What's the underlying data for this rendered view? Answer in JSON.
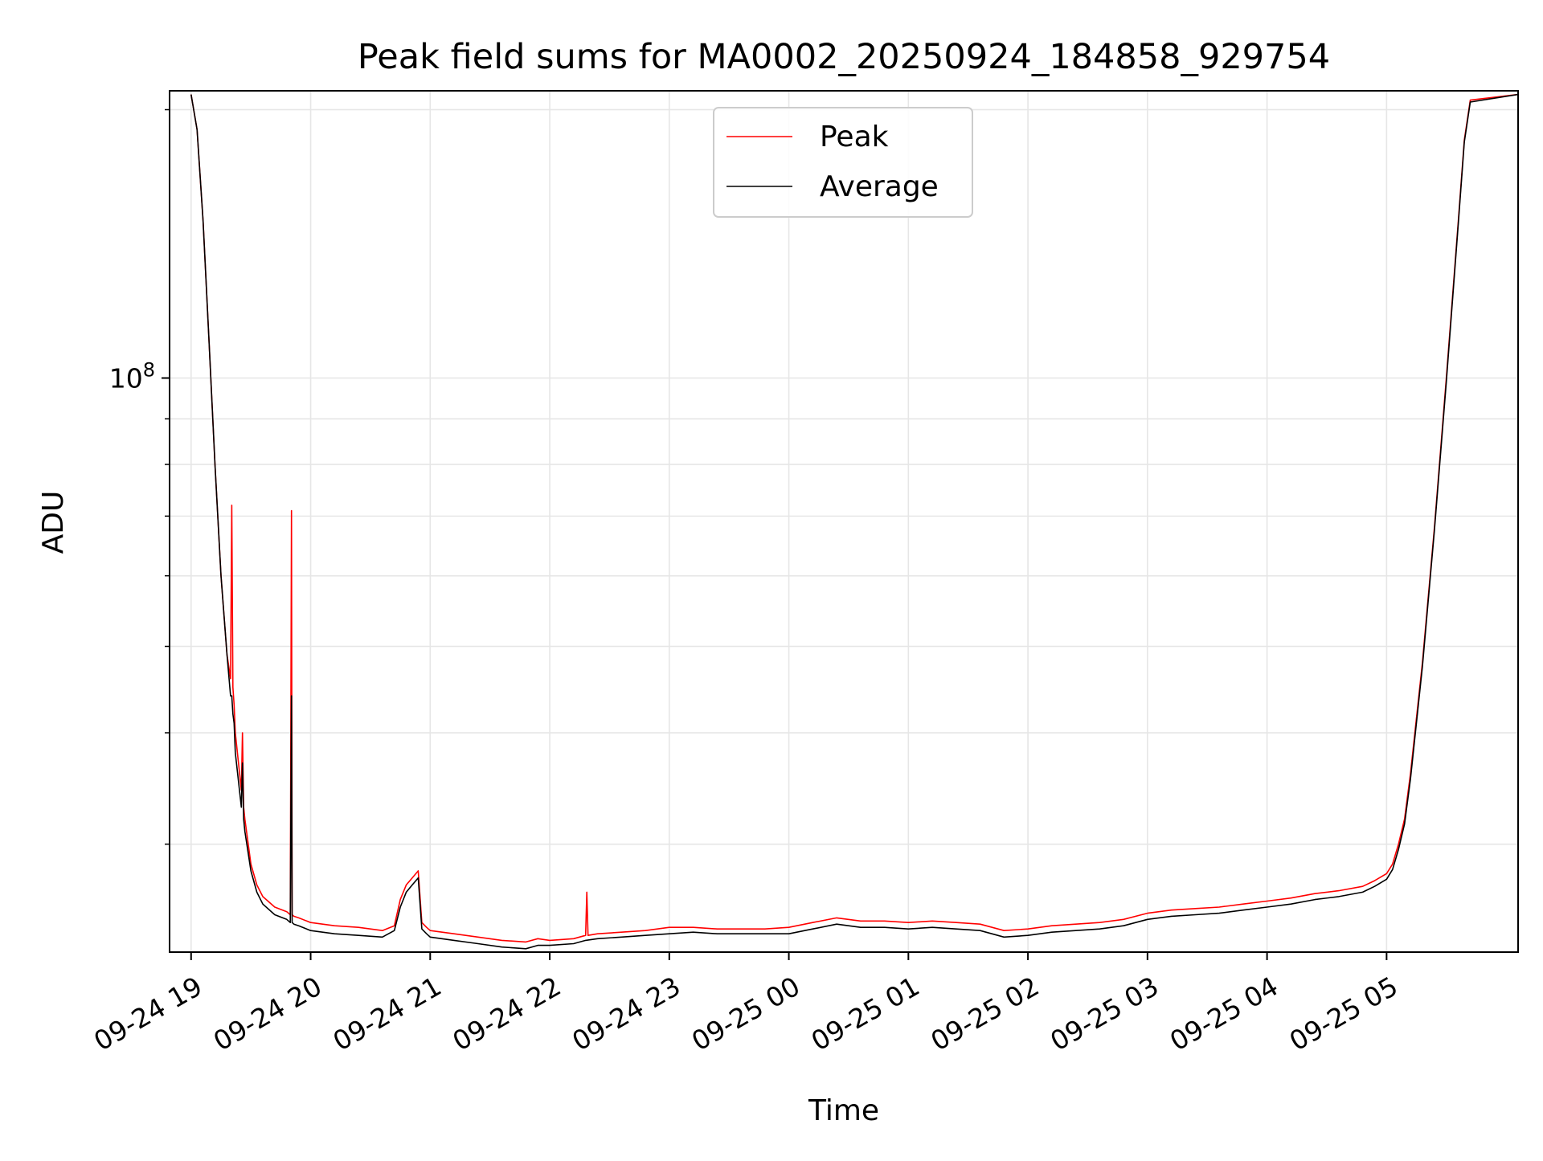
{
  "chart_data": {
    "type": "line",
    "title": "Peak field sums for MA0002_20250924_184858_929754",
    "xlabel": "Time",
    "ylabel": "ADU",
    "yscale": "log",
    "ylim": [
      22700000,
      210000000
    ],
    "xlim": [
      -0.18,
      11.1
    ],
    "x_ticks": [
      {
        "value": 0,
        "label": "09-24 19"
      },
      {
        "value": 1,
        "label": "09-24 20"
      },
      {
        "value": 2,
        "label": "09-24 21"
      },
      {
        "value": 3,
        "label": "09-24 22"
      },
      {
        "value": 4,
        "label": "09-24 23"
      },
      {
        "value": 5,
        "label": "09-25 00"
      },
      {
        "value": 6,
        "label": "09-25 01"
      },
      {
        "value": 7,
        "label": "09-25 02"
      },
      {
        "value": 8,
        "label": "09-25 03"
      },
      {
        "value": 9,
        "label": "09-25 04"
      },
      {
        "value": 10,
        "label": "09-25 05"
      }
    ],
    "y_major_ticks": [
      {
        "value": 100000000,
        "base": "10",
        "exp": "8"
      }
    ],
    "y_minor_ticks": [
      30000000,
      40000000,
      50000000,
      60000000,
      70000000,
      80000000,
      90000000,
      200000000
    ],
    "grid": true,
    "legend_position": "top-center",
    "series": [
      {
        "name": "Peak",
        "color": "#ff0000",
        "x": [
          0.0,
          0.05,
          0.1,
          0.15,
          0.2,
          0.25,
          0.3,
          0.33,
          0.34,
          0.35,
          0.36,
          0.37,
          0.42,
          0.43,
          0.44,
          0.45,
          0.5,
          0.55,
          0.6,
          0.7,
          0.8,
          0.83,
          0.84,
          0.845,
          0.86,
          0.9,
          1.0,
          1.2,
          1.4,
          1.6,
          1.7,
          1.75,
          1.8,
          1.85,
          1.9,
          1.93,
          1.97,
          2.0,
          2.2,
          2.4,
          2.6,
          2.8,
          2.9,
          3.0,
          3.2,
          3.3,
          3.31,
          3.32,
          3.4,
          3.6,
          3.8,
          4.0,
          4.2,
          4.4,
          4.6,
          4.8,
          5.0,
          5.2,
          5.4,
          5.6,
          5.8,
          6.0,
          6.2,
          6.4,
          6.6,
          6.8,
          7.0,
          7.2,
          7.4,
          7.6,
          7.8,
          8.0,
          8.2,
          8.4,
          8.6,
          8.8,
          9.0,
          9.2,
          9.4,
          9.6,
          9.8,
          9.9,
          10.0,
          10.05,
          10.1,
          10.15,
          10.2,
          10.3,
          10.4,
          10.5,
          10.6,
          10.65,
          10.7,
          11.1
        ],
        "y": [
          208000000,
          190000000,
          150000000,
          110000000,
          80000000,
          60000000,
          49000000,
          46000000,
          72000000,
          45000000,
          43000000,
          40000000,
          34500000,
          40000000,
          33000000,
          32000000,
          28500000,
          27000000,
          26200000,
          25500000,
          25200000,
          25000000,
          71000000,
          25000000,
          24900000,
          24800000,
          24500000,
          24300000,
          24200000,
          24000000,
          24300000,
          26000000,
          27000000,
          27500000,
          28000000,
          24500000,
          24200000,
          24000000,
          23800000,
          23600000,
          23400000,
          23300000,
          23500000,
          23400000,
          23500000,
          23700000,
          26500000,
          23700000,
          23800000,
          23900000,
          24000000,
          24200000,
          24200000,
          24100000,
          24100000,
          24100000,
          24200000,
          24500000,
          24800000,
          24600000,
          24600000,
          24500000,
          24600000,
          24500000,
          24400000,
          24000000,
          24100000,
          24300000,
          24400000,
          24500000,
          24700000,
          25100000,
          25300000,
          25400000,
          25500000,
          25700000,
          25900000,
          26100000,
          26400000,
          26600000,
          26900000,
          27300000,
          27800000,
          28500000,
          30000000,
          32000000,
          36000000,
          48000000,
          68000000,
          100000000,
          150000000,
          185000000,
          205000000,
          208000000
        ]
      },
      {
        "name": "Average",
        "color": "#000000",
        "x": [
          0.0,
          0.05,
          0.1,
          0.15,
          0.2,
          0.25,
          0.3,
          0.33,
          0.34,
          0.35,
          0.36,
          0.37,
          0.42,
          0.43,
          0.44,
          0.45,
          0.5,
          0.55,
          0.6,
          0.7,
          0.8,
          0.83,
          0.84,
          0.845,
          0.86,
          0.9,
          1.0,
          1.2,
          1.4,
          1.6,
          1.7,
          1.75,
          1.8,
          1.85,
          1.9,
          1.93,
          1.97,
          2.0,
          2.2,
          2.4,
          2.6,
          2.8,
          2.9,
          3.0,
          3.2,
          3.3,
          3.4,
          3.6,
          3.8,
          4.0,
          4.2,
          4.4,
          4.6,
          4.8,
          5.0,
          5.2,
          5.4,
          5.6,
          5.8,
          6.0,
          6.2,
          6.4,
          6.6,
          6.8,
          7.0,
          7.2,
          7.4,
          7.6,
          7.8,
          8.0,
          8.2,
          8.4,
          8.6,
          8.8,
          9.0,
          9.2,
          9.4,
          9.6,
          9.8,
          9.9,
          10.0,
          10.05,
          10.1,
          10.15,
          10.2,
          10.3,
          10.4,
          10.5,
          10.6,
          10.65,
          10.7,
          11.1
        ],
        "y": [
          208000000,
          190000000,
          150000000,
          110000000,
          80000000,
          60000000,
          49000000,
          44000000,
          44000000,
          42000000,
          41000000,
          38000000,
          33000000,
          37000000,
          32000000,
          31000000,
          28000000,
          26500000,
          25700000,
          25000000,
          24700000,
          24500000,
          44000000,
          24500000,
          24400000,
          24300000,
          24000000,
          23800000,
          23700000,
          23600000,
          24000000,
          25500000,
          26500000,
          27000000,
          27500000,
          24100000,
          23800000,
          23600000,
          23400000,
          23200000,
          23000000,
          22900000,
          23100000,
          23100000,
          23200000,
          23400000,
          23500000,
          23600000,
          23700000,
          23800000,
          23900000,
          23800000,
          23800000,
          23800000,
          23800000,
          24100000,
          24400000,
          24200000,
          24200000,
          24100000,
          24200000,
          24100000,
          24000000,
          23600000,
          23700000,
          23900000,
          24000000,
          24100000,
          24300000,
          24700000,
          24900000,
          25000000,
          25100000,
          25300000,
          25500000,
          25700000,
          26000000,
          26200000,
          26500000,
          26900000,
          27400000,
          28100000,
          29600000,
          31600000,
          35500000,
          47500000,
          67500000,
          99000000,
          149000000,
          184000000,
          204000000,
          208000000
        ]
      }
    ]
  }
}
